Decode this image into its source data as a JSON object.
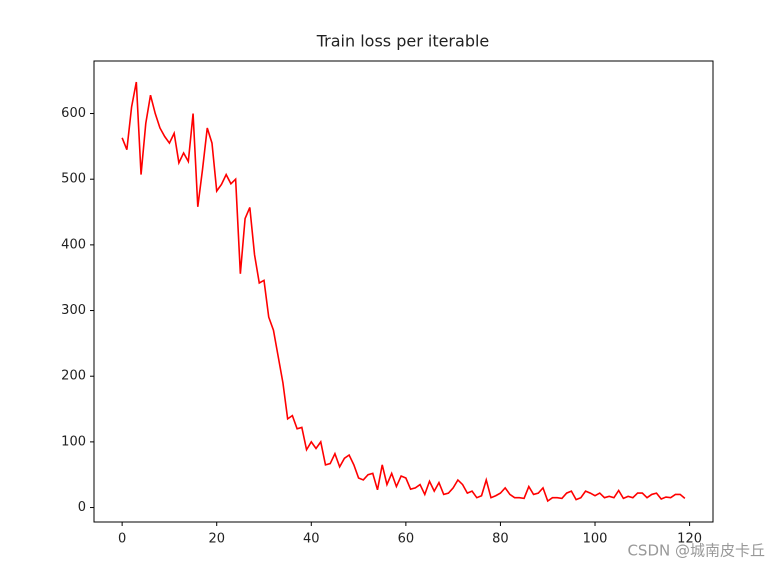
{
  "chart_data": {
    "type": "line",
    "title": "Train loss per iterable",
    "x": [
      0,
      1,
      2,
      3,
      4,
      5,
      6,
      7,
      8,
      9,
      10,
      11,
      12,
      13,
      14,
      15,
      16,
      17,
      18,
      19,
      20,
      21,
      22,
      23,
      24,
      25,
      26,
      27,
      28,
      29,
      30,
      31,
      32,
      33,
      34,
      35,
      36,
      37,
      38,
      39,
      40,
      41,
      42,
      43,
      44,
      45,
      46,
      47,
      48,
      49,
      50,
      51,
      52,
      53,
      54,
      55,
      56,
      57,
      58,
      59,
      60,
      61,
      62,
      63,
      64,
      65,
      66,
      67,
      68,
      69,
      70,
      71,
      72,
      73,
      74,
      75,
      76,
      77,
      78,
      79,
      80,
      81,
      82,
      83,
      84,
      85,
      86,
      87,
      88,
      89,
      90,
      91,
      92,
      93,
      94,
      95,
      96,
      97,
      98,
      99,
      100,
      101,
      102,
      103,
      104,
      105,
      106,
      107,
      108,
      109,
      110,
      111,
      112,
      113,
      114,
      115,
      116,
      117,
      118,
      119
    ],
    "series": [
      {
        "name": "loss",
        "color": "#ff0000",
        "values": [
          563,
          545,
          610,
          648,
          507,
          585,
          628,
          600,
          578,
          565,
          555,
          570,
          525,
          540,
          527,
          600,
          458,
          515,
          578,
          555,
          482,
          492,
          507,
          493,
          500,
          356,
          440,
          457,
          385,
          342,
          346,
          290,
          270,
          230,
          190,
          135,
          140,
          120,
          122,
          88,
          100,
          90,
          100,
          65,
          67,
          82,
          62,
          75,
          80,
          65,
          45,
          42,
          50,
          52,
          27,
          65,
          35,
          52,
          32,
          48,
          45,
          28,
          30,
          35,
          20,
          40,
          25,
          38,
          20,
          22,
          30,
          42,
          35,
          22,
          25,
          15,
          18,
          42,
          15,
          18,
          22,
          30,
          20,
          15,
          15,
          14,
          32,
          20,
          22,
          30,
          10,
          15,
          15,
          14,
          22,
          25,
          12,
          15,
          25,
          22,
          18,
          22,
          15,
          17,
          15,
          26,
          14,
          17,
          15,
          22,
          22,
          15,
          20,
          22,
          13,
          16,
          15,
          20,
          20,
          14
        ]
      }
    ],
    "xlim": [
      -5.95,
      124.95
    ],
    "xticks": [
      0,
      20,
      40,
      60,
      80,
      100,
      120
    ],
    "ylim": [
      -22,
      680
    ],
    "yticks": [
      0,
      100,
      200,
      300,
      400,
      500,
      600
    ],
    "annotation": "CSDN @城南皮卡丘"
  }
}
